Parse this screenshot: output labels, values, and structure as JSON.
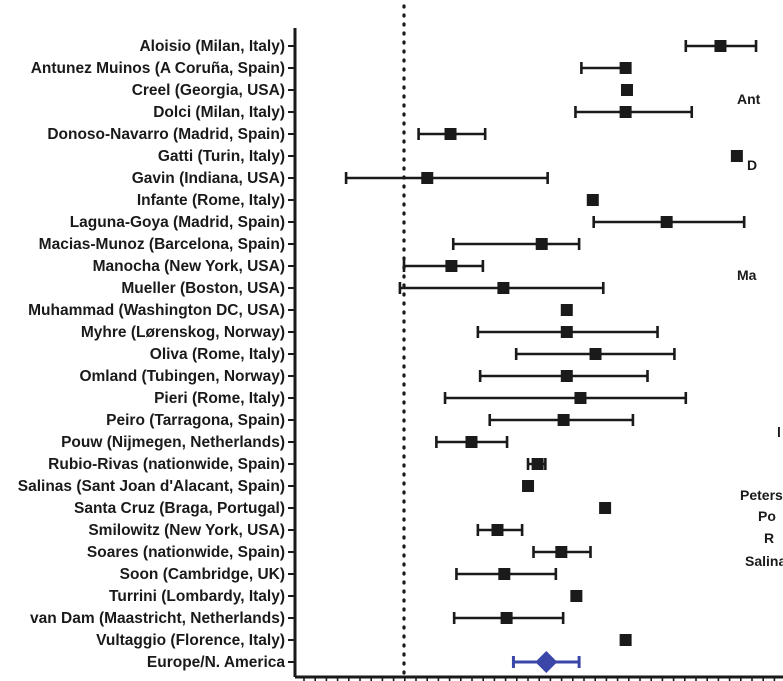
{
  "chart_data": {
    "type": "forest",
    "title": "",
    "xlabel": "",
    "ylabel": "",
    "reference_line": "dotted",
    "studies": [
      {
        "label": "Aloisio (Milan, Italy)",
        "est": 0.694,
        "lo": 0.618,
        "hi": 0.772
      },
      {
        "label": "Antunez Muinos (A Coruña, Spain)",
        "est": 0.486,
        "lo": 0.389,
        "hi": 0.486
      },
      {
        "label": "Creel (Georgia, USA)",
        "est": 0.489,
        "lo": null,
        "hi": null
      },
      {
        "label": "Dolci (Milan, Italy)",
        "est": 0.486,
        "lo": 0.376,
        "hi": 0.631
      },
      {
        "label": "Donoso-Navarro (Madrid, Spain)",
        "est": 0.102,
        "lo": 0.032,
        "hi": 0.178
      },
      {
        "label": "Gatti (Turin, Italy)",
        "est": 0.73,
        "lo": null,
        "hi": null
      },
      {
        "label": "Gavin (Indiana, USA)",
        "est": 0.051,
        "lo": -0.127,
        "hi": 0.315
      },
      {
        "label": "Infante (Rome, Italy)",
        "est": 0.414,
        "lo": null,
        "hi": null
      },
      {
        "label": "Laguna-Goya (Madrid, Spain)",
        "est": 0.576,
        "lo": 0.416,
        "hi": 0.746
      },
      {
        "label": "Macias-Munoz (Barcelona, Spain)",
        "est": 0.302,
        "lo": 0.108,
        "hi": 0.384
      },
      {
        "label": "Manocha (New York, USA)",
        "est": 0.104,
        "lo": 0.0,
        "hi": 0.173
      },
      {
        "label": "Mueller (Boston, USA)",
        "est": 0.218,
        "lo": -0.009,
        "hi": 0.437
      },
      {
        "label": "Muhammad (Washington DC, USA)",
        "est": 0.357,
        "lo": null,
        "hi": null
      },
      {
        "label": "Myhre (Lørenskog, Norway)",
        "est": 0.357,
        "lo": 0.162,
        "hi": 0.556
      },
      {
        "label": "Oliva (Rome, Italy)",
        "est": 0.42,
        "lo": 0.246,
        "hi": 0.593
      },
      {
        "label": "Omland (Tubingen, Norway)",
        "est": 0.357,
        "lo": 0.167,
        "hi": 0.534
      },
      {
        "label": "Pieri (Rome, Italy)",
        "est": 0.387,
        "lo": 0.09,
        "hi": 0.618
      },
      {
        "label": "Peiro (Tarragona, Spain)",
        "est": 0.35,
        "lo": 0.188,
        "hi": 0.502
      },
      {
        "label": "Pouw (Nijmegen, Netherlands)",
        "est": 0.148,
        "lo": 0.071,
        "hi": 0.226
      },
      {
        "label": "Rubio-Rivas (nationwide, Spain)",
        "est": 0.293,
        "lo": 0.272,
        "hi": 0.31
      },
      {
        "label": "Salinas (Sant Joan d'Alacant, Spain)",
        "est": 0.272,
        "lo": null,
        "hi": null
      },
      {
        "label": "Santa Cruz (Braga, Portugal)",
        "est": 0.441,
        "lo": null,
        "hi": null
      },
      {
        "label": "Smilowitz (New York, USA)",
        "est": 0.205,
        "lo": 0.162,
        "hi": 0.259
      },
      {
        "label": "Soares (nationwide, Spain)",
        "est": 0.345,
        "lo": 0.284,
        "hi": 0.409
      },
      {
        "label": "Soon (Cambridge, UK)",
        "est": 0.22,
        "lo": 0.115,
        "hi": 0.333
      },
      {
        "label": "Turrini (Lombardy, Italy)",
        "est": 0.378,
        "lo": null,
        "hi": null
      },
      {
        "label": "van Dam (Maastricht, Netherlands)",
        "est": 0.225,
        "lo": 0.11,
        "hi": 0.349
      },
      {
        "label": "Vultaggio (Florence, Italy)",
        "est": 0.486,
        "lo": null,
        "hi": null
      }
    ],
    "pooled": {
      "label": "Europe/N. America",
      "est": 0.312,
      "lo": 0.24,
      "hi": 0.384,
      "color": "#3a46a8"
    },
    "marker_color": "#1a1a1a",
    "right_panel_fragments": [
      "Ant",
      "D",
      "Ma",
      "l",
      "Peters",
      "Po",
      "R",
      "Salina"
    ]
  }
}
